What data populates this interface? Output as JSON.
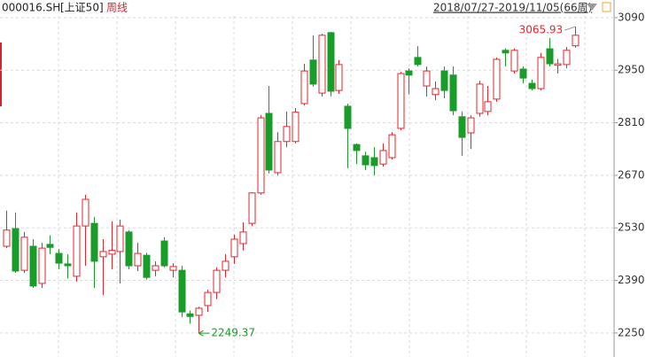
{
  "chart_data": {
    "type": "candlestick",
    "title": "000016.SH",
    "market": "[上证50]",
    "period": "周线",
    "date_range": "2018/07/27-2019/11/05(66周)",
    "up_color": "#e3262e",
    "down_color": "#1a9c2a",
    "ylim": [
      2186,
      3137
    ],
    "yticks": [
      2250,
      2390,
      2530,
      2670,
      2810,
      2950,
      3090
    ],
    "grid": true,
    "high_annotation": 3065.93,
    "low_annotation": 2249.37,
    "open": [
      2481,
      2528,
      2417,
      2481,
      2382,
      2486,
      2462,
      2434,
      2401,
      2535,
      2542,
      2453,
      2460,
      2467,
      2519,
      2429,
      2457,
      2417,
      2495,
      2417,
      2417,
      2301,
      2297,
      2323,
      2358,
      2417,
      2453,
      2488,
      2542,
      2623,
      2835,
      2677,
      2760,
      2760,
      2861,
      2977,
      2889,
      3050,
      2896,
      2854,
      2752,
      2722,
      2717,
      2700,
      2717,
      2795,
      2948,
      2984,
      2908,
      2885,
      2948,
      2937,
      2826,
      2783,
      2835,
      2840,
      2873,
      3003,
      2948,
      2953,
      2915,
      2901,
      3007,
      2963,
      2965,
      3015
    ],
    "high": [
      2576,
      2571,
      2519,
      2500,
      2490,
      2510,
      2474,
      2460,
      2571,
      2618,
      2559,
      2500,
      2547,
      2552,
      2524,
      2490,
      2464,
      2441,
      2505,
      2436,
      2429,
      2310,
      2320,
      2365,
      2425,
      2460,
      2512,
      2545,
      2625,
      2830,
      2908,
      2785,
      2840,
      2849,
      2967,
      3043,
      3047,
      3052,
      2977,
      2861,
      2755,
      2733,
      2745,
      2755,
      2785,
      2946,
      2955,
      3014,
      2960,
      2920,
      2960,
      2960,
      2840,
      2830,
      2922,
      2908,
      2984,
      3008,
      3008,
      2960,
      2925,
      2996,
      3036,
      2980,
      3012,
      3065.93
    ],
    "low": [
      2476,
      2410,
      2410,
      2370,
      2370,
      2460,
      2420,
      2395,
      2387,
      2429,
      2370,
      2351,
      2420,
      2382,
      2420,
      2415,
      2392,
      2401,
      2425,
      2398,
      2292,
      2275,
      2249.37,
      2306,
      2340,
      2398,
      2434,
      2470,
      2535,
      2618,
      2675,
      2670,
      2745,
      2755,
      2856,
      2906,
      2880,
      2880,
      2887,
      2689,
      2700,
      2684,
      2670,
      2693,
      2712,
      2790,
      2885,
      2960,
      2880,
      2870,
      2875,
      2830,
      2722,
      2740,
      2826,
      2830,
      2866,
      2960,
      2941,
      2915,
      2896,
      2896,
      2960,
      2941,
      2955,
      3010
    ],
    "close": [
      2524,
      2415,
      2505,
      2375,
      2476,
      2478,
      2436,
      2429,
      2535,
      2606,
      2441,
      2467,
      2470,
      2535,
      2429,
      2462,
      2398,
      2429,
      2429,
      2427,
      2306,
      2294,
      2316,
      2358,
      2417,
      2441,
      2500,
      2519,
      2623,
      2823,
      2684,
      2760,
      2800,
      2838,
      2948,
      2913,
      3043,
      2894,
      2965,
      2795,
      2736,
      2698,
      2696,
      2736,
      2778,
      2941,
      2937,
      2965,
      2948,
      2901,
      2896,
      2842,
      2771,
      2823,
      2913,
      2866,
      2979,
      2996,
      3003,
      2929,
      2901,
      2984,
      2967,
      2967,
      3003,
      3043
    ]
  }
}
